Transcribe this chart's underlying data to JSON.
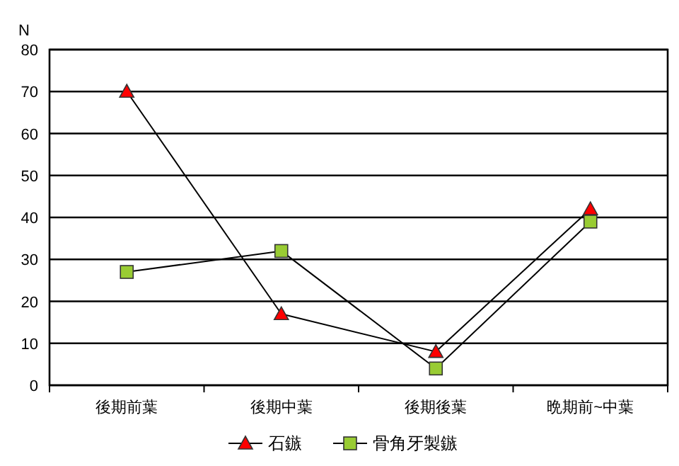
{
  "chart_data": {
    "type": "line",
    "ylabel": "N",
    "categories": [
      "後期前葉",
      "後期中葉",
      "後期後葉",
      "晩期前~中葉"
    ],
    "series": [
      {
        "name": "石鏃",
        "color": "#ff0000",
        "marker": "triangle",
        "values": [
          70,
          17,
          8,
          42
        ]
      },
      {
        "name": "骨角牙製鏃",
        "color": "#99cc33",
        "marker": "square",
        "values": [
          27,
          32,
          4,
          39
        ]
      }
    ],
    "ylim": [
      0,
      80
    ],
    "yticks": [
      0,
      10,
      20,
      30,
      40,
      50,
      60,
      70,
      80
    ],
    "grid": "y",
    "legend": "bottom"
  }
}
